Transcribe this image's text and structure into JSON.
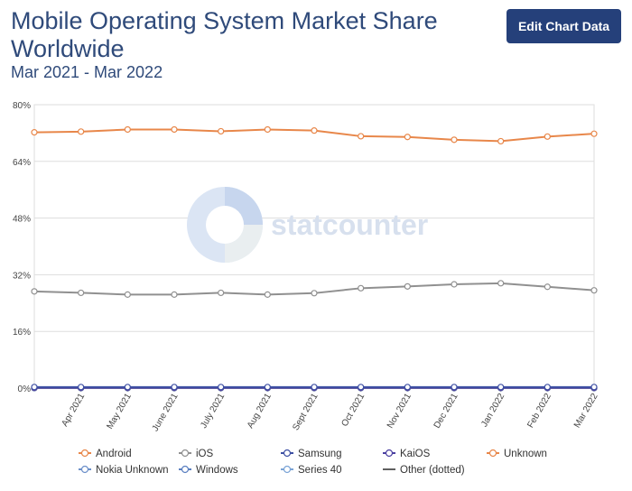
{
  "header": {
    "title": "Mobile Operating System Market Share Worldwide",
    "subtitle": "Mar 2021 - Mar 2022",
    "edit_button_label": "Edit Chart Data"
  },
  "watermark": {
    "text": "statcounter"
  },
  "colors": {
    "Android": "#e8874a",
    "iOS": "#909090",
    "Samsung": "#3d4fa3",
    "KaiOS": "#4a3fa0",
    "Unknown": "#e8874a",
    "Nokia Unknown": "#6b8fc9",
    "Windows": "#5a7fc0",
    "Series 40": "#7aa3d6",
    "Other (dotted)": "#606060",
    "grid": "#dddddd",
    "axis_text": "#444444"
  },
  "chart_data": {
    "type": "line",
    "x": [
      "Mar 2021",
      "Apr 2021",
      "May 2021",
      "June 2021",
      "July 2021",
      "Aug 2021",
      "Sept 2021",
      "Oct 2021",
      "Nov 2021",
      "Dec 2021",
      "Jan 2022",
      "Feb 2022",
      "Mar 2022"
    ],
    "x_tick_labels": [
      "Apr 2021",
      "May 2021",
      "June 2021",
      "July 2021",
      "Aug 2021",
      "Sept 2021",
      "Oct 2021",
      "Nov 2021",
      "Dec 2021",
      "Jan 2022",
      "Feb 2022",
      "Mar 2022"
    ],
    "y_ticks": [
      0,
      16,
      32,
      48,
      64,
      80
    ],
    "y_tick_labels": [
      "0%",
      "16%",
      "32%",
      "48%",
      "64%",
      "80%"
    ],
    "ylim": [
      0,
      80
    ],
    "grid": true,
    "legend_position": "bottom",
    "series": [
      {
        "name": "Android",
        "values": [
          72.2,
          72.4,
          73.0,
          73.0,
          72.5,
          73.0,
          72.7,
          71.1,
          70.9,
          70.1,
          69.7,
          71.0,
          71.8
        ]
      },
      {
        "name": "iOS",
        "values": [
          27.3,
          26.9,
          26.4,
          26.4,
          26.9,
          26.4,
          26.8,
          28.2,
          28.7,
          29.3,
          29.6,
          28.6,
          27.6
        ]
      },
      {
        "name": "Samsung",
        "values": [
          0.3,
          0.3,
          0.3,
          0.3,
          0.3,
          0.3,
          0.3,
          0.3,
          0.3,
          0.3,
          0.3,
          0.3,
          0.3
        ]
      },
      {
        "name": "KaiOS",
        "values": [
          0.1,
          0.1,
          0.1,
          0.1,
          0.1,
          0.1,
          0.1,
          0.1,
          0.1,
          0.1,
          0.1,
          0.1,
          0.1
        ]
      },
      {
        "name": "Unknown",
        "values": [
          0.1,
          0.1,
          0.1,
          0.1,
          0.1,
          0.1,
          0.1,
          0.1,
          0.1,
          0.1,
          0.1,
          0.1,
          0.1
        ]
      },
      {
        "name": "Nokia Unknown",
        "values": [
          0.0,
          0.0,
          0.0,
          0.0,
          0.0,
          0.0,
          0.0,
          0.0,
          0.0,
          0.0,
          0.0,
          0.0,
          0.0
        ]
      },
      {
        "name": "Windows",
        "values": [
          0.0,
          0.0,
          0.0,
          0.0,
          0.0,
          0.0,
          0.0,
          0.0,
          0.0,
          0.0,
          0.0,
          0.0,
          0.0
        ]
      },
      {
        "name": "Series 40",
        "values": [
          0.0,
          0.0,
          0.0,
          0.0,
          0.0,
          0.0,
          0.0,
          0.0,
          0.0,
          0.0,
          0.0,
          0.0,
          0.0
        ]
      },
      {
        "name": "Other (dotted)",
        "values": [
          0.0,
          0.0,
          0.0,
          0.0,
          0.0,
          0.0,
          0.0,
          0.0,
          0.0,
          0.0,
          0.0,
          0.0,
          0.0
        ]
      }
    ],
    "legend": [
      "Android",
      "iOS",
      "Samsung",
      "KaiOS",
      "Unknown",
      "Nokia Unknown",
      "Windows",
      "Series 40",
      "Other (dotted)"
    ]
  }
}
